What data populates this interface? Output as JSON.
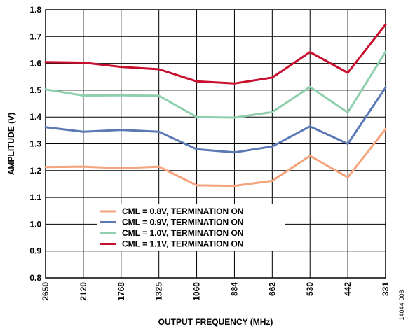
{
  "chart_data": {
    "type": "line",
    "xlabel": "OUTPUT FREQUENCY (MHz)",
    "ylabel": "AMPLITUDE (V)",
    "categories": [
      "2650",
      "2120",
      "1768",
      "1325",
      "1060",
      "884",
      "662",
      "530",
      "442",
      "331"
    ],
    "ylim": [
      0.8,
      1.8
    ],
    "yticks": [
      "0.8",
      "0.9",
      "1.0",
      "1.1",
      "1.2",
      "1.3",
      "1.4",
      "1.5",
      "1.6",
      "1.7",
      "1.8"
    ],
    "grid": true,
    "legend_position": "bottom-center",
    "figure_id": "14044-008",
    "series": [
      {
        "name": "CML = 0.8V, TERMINATION ON",
        "color": "#f4a37c",
        "values": [
          1.213,
          1.215,
          1.209,
          1.215,
          1.145,
          1.143,
          1.162,
          1.255,
          1.175,
          1.355
        ]
      },
      {
        "name": "CML = 0.9V, TERMINATION ON",
        "color": "#5b79b4",
        "values": [
          1.362,
          1.345,
          1.352,
          1.345,
          1.28,
          1.268,
          1.29,
          1.365,
          1.3,
          1.51
        ]
      },
      {
        "name": "CML = 1.0V, TERMINATION ON",
        "color": "#8fcfad",
        "values": [
          1.503,
          1.48,
          1.481,
          1.479,
          1.4,
          1.398,
          1.418,
          1.512,
          1.417,
          1.643
        ]
      },
      {
        "name": "CML = 1.1V, TERMINATION ON",
        "color": "#c8102e",
        "values": [
          1.605,
          1.603,
          1.587,
          1.578,
          1.533,
          1.525,
          1.547,
          1.642,
          1.565,
          1.745
        ]
      }
    ]
  }
}
